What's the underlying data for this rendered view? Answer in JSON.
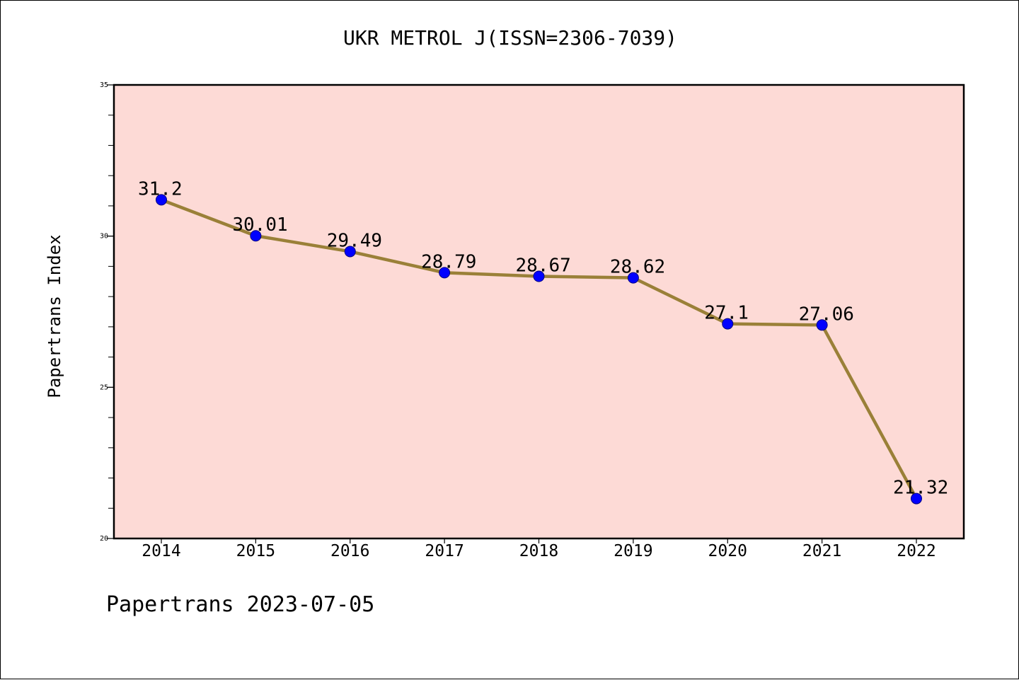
{
  "title": "UKR METROL J(ISSN=2306-7039)",
  "footer": "Papertrans 2023-07-05",
  "colors": {
    "plot_background": "#fddad6",
    "line": "#9a8038",
    "marker": "#0000ff",
    "marker_edge": "#000080"
  },
  "chart_data": {
    "type": "line",
    "title": "UKR METROL J(ISSN=2306-7039)",
    "xlabel": "",
    "ylabel": "Papertrans Index",
    "categories": [
      "2014",
      "2015",
      "2016",
      "2017",
      "2018",
      "2019",
      "2020",
      "2021",
      "2022"
    ],
    "series": [
      {
        "values": [
          31.2,
          30.01,
          29.49,
          28.79,
          28.67,
          28.62,
          27.1,
          27.06,
          21.32
        ],
        "labels": [
          "31.2",
          "30.01",
          "29.49",
          "28.79",
          "28.67",
          "28.62",
          "27.1",
          "27.06",
          "21.32"
        ]
      }
    ],
    "ylim": [
      20,
      35
    ],
    "yticks": [
      20,
      25,
      30,
      35
    ],
    "y_minor_step": 1,
    "grid": false,
    "legend": "none"
  }
}
